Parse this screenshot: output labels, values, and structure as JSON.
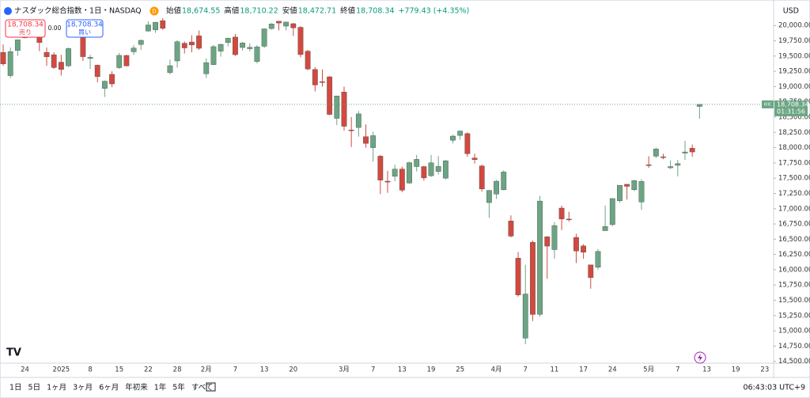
{
  "header": {
    "symbol": "ナスダック総合指数・1日・NASDAQ",
    "badge": "D",
    "ohlc": [
      {
        "label": "始値",
        "value": "18,674.55"
      },
      {
        "label": "高値",
        "value": "18,710.22"
      },
      {
        "label": "安値",
        "value": "18,472.71"
      },
      {
        "label": "終値",
        "value": "18,708.34"
      }
    ],
    "change": "+779.43 (+4.35%)"
  },
  "trade": {
    "sell": {
      "price": "18,708.34",
      "label": "売り"
    },
    "spread": "0.00",
    "buy": {
      "price": "18,708.34",
      "label": "買い"
    }
  },
  "currency": "USD",
  "price_tag": {
    "symbol": "IXIC",
    "price": "18,708.34",
    "countdown": "01:31:56"
  },
  "toolbar": {
    "ranges": [
      "1日",
      "5日",
      "1ヶ月",
      "3ヶ月",
      "6ヶ月",
      "年初来",
      "1年",
      "5年",
      "すべて"
    ],
    "clock": "06:43:03 UTC+9"
  },
  "chart_data": {
    "type": "candlestick",
    "up_color": "#6BA583",
    "down_color": "#D2493F",
    "grid": false,
    "ylim": [
      14470,
      20340
    ],
    "yticks": [
      {
        "value": 14500,
        "label": "14,500.00"
      },
      {
        "value": 14750,
        "label": "14,750.00"
      },
      {
        "value": 15000,
        "label": "15,000.00"
      },
      {
        "value": 15250,
        "label": "15,250.00"
      },
      {
        "value": 15500,
        "label": "15,500.00"
      },
      {
        "value": 15750,
        "label": "15,750.00"
      },
      {
        "value": 16000,
        "label": "16,000.00"
      },
      {
        "value": 16250,
        "label": "16,250.00"
      },
      {
        "value": 16500,
        "label": "16,500.00"
      },
      {
        "value": 16750,
        "label": "16,750.00"
      },
      {
        "value": 17000,
        "label": "17,000.00"
      },
      {
        "value": 17250,
        "label": "17,250.00"
      },
      {
        "value": 17500,
        "label": "17,500.00"
      },
      {
        "value": 17750,
        "label": "17,750.00"
      },
      {
        "value": 18000,
        "label": "18,000.00"
      },
      {
        "value": 18250,
        "label": "18,250.00"
      },
      {
        "value": 18500,
        "label": "18,500.00"
      },
      {
        "value": 18750,
        "label": "18,750.00"
      },
      {
        "value": 19000,
        "label": "19,000.00"
      },
      {
        "value": 19250,
        "label": "19,250.00"
      },
      {
        "value": 19500,
        "label": "19,500.00"
      },
      {
        "value": 19750,
        "label": "19,750.00"
      },
      {
        "value": 20000,
        "label": "20,000.00"
      }
    ],
    "categories": [
      null,
      null,
      null,
      "24",
      null,
      null,
      null,
      null,
      "2025",
      null,
      null,
      null,
      "8",
      null,
      null,
      null,
      "15",
      null,
      null,
      null,
      "22",
      null,
      null,
      null,
      "28",
      null,
      null,
      null,
      "2月",
      null,
      null,
      null,
      "7",
      null,
      null,
      null,
      "13",
      null,
      null,
      null,
      "20",
      null,
      null,
      null,
      null,
      null,
      null,
      "3月",
      null,
      null,
      null,
      "7",
      null,
      null,
      null,
      "13",
      null,
      null,
      null,
      "19",
      null,
      null,
      null,
      "25",
      null,
      null,
      null,
      null,
      "4月",
      null,
      null,
      null,
      "7",
      null,
      null,
      null,
      "11",
      null,
      null,
      null,
      "17",
      null,
      null,
      null,
      "24",
      null,
      null,
      null,
      null,
      "5月",
      null,
      null,
      null,
      "7",
      null,
      null,
      null,
      "13",
      null,
      null,
      null,
      "19",
      null,
      null,
      null,
      "23",
      null
    ],
    "open": [
      19560,
      19180,
      19590,
      19800,
      19970,
      19930,
      19560,
      19520,
      19400,
      19340,
      19850,
      19940,
      19460,
      19350,
      18970,
      19200,
      19310,
      19510,
      19570,
      19690,
      19910,
      19930,
      20080,
      19230,
      19420,
      19710,
      19730,
      19830,
      19210,
      19360,
      19580,
      19720,
      19810,
      19640,
      19620,
      19410,
      19660,
      19950,
      20070,
      19990,
      20030,
      19970,
      19580,
      19280,
      19080,
      19160,
      18480,
      18910,
      18290,
      18330,
      18180,
      18000,
      17860,
      17450,
      17530,
      17650,
      17420,
      17690,
      17690,
      17540,
      17610,
      17500,
      18120,
      18200,
      18230,
      17830,
      17700,
      17100,
      17240,
      17310,
      16800,
      16190,
      14880,
      16450,
      15270,
      16540,
      16330,
      17010,
      16830,
      16530,
      16390,
      16080,
      16040,
      16640,
      16740,
      17130,
      17400,
      17310,
      17110,
      17720,
      17860,
      17850,
      17670,
      17710,
      17910,
      17990,
      18674.55,
      null,
      null,
      null,
      null,
      null,
      null,
      null,
      null,
      null,
      null
    ],
    "high": [
      19690,
      19640,
      19770,
      20040,
      20060,
      19940,
      19640,
      19560,
      19520,
      19640,
      20010,
      19970,
      19520,
      19360,
      19100,
      19250,
      19550,
      19520,
      19680,
      19770,
      20070,
      20060,
      20120,
      19440,
      19760,
      19740,
      19840,
      19920,
      19460,
      19680,
      19700,
      19800,
      19860,
      19730,
      19710,
      19680,
      19950,
      20040,
      20070,
      20060,
      20040,
      19990,
      19600,
      19320,
      19280,
      19170,
      18850,
      19000,
      18500,
      18600,
      18380,
      18260,
      17880,
      17620,
      17720,
      17690,
      17770,
      17880,
      17700,
      17880,
      17860,
      17800,
      18210,
      18280,
      18250,
      17900,
      17720,
      17310,
      17470,
      17630,
      16890,
      16290,
      16080,
      16480,
      17210,
      16550,
      16780,
      17050,
      16950,
      16590,
      16420,
      16080,
      16340,
      17050,
      17170,
      17380,
      17400,
      17470,
      17480,
      17860,
      18000,
      17900,
      17790,
      17800,
      18110,
      18050,
      18710.22,
      null,
      null,
      null,
      null,
      null,
      null,
      null,
      null,
      null,
      null
    ],
    "low": [
      19340,
      19140,
      19500,
      19790,
      19900,
      19580,
      19340,
      19290,
      19180,
      19320,
      19800,
      19420,
      19290,
      19070,
      18830,
      18990,
      19290,
      19330,
      19520,
      19600,
      19900,
      19880,
      19930,
      19200,
      19310,
      19540,
      19560,
      19600,
      19140,
      19350,
      19490,
      19660,
      19500,
      19590,
      19580,
      19380,
      19630,
      19930,
      19920,
      19920,
      19830,
      19480,
      19270,
      18920,
      19000,
      18530,
      18370,
      18280,
      18010,
      18180,
      18000,
      17770,
      17240,
      17260,
      17450,
      17270,
      17410,
      17610,
      17460,
      17520,
      17560,
      17480,
      18070,
      18130,
      17850,
      17740,
      17280,
      16850,
      17160,
      17300,
      16530,
      15560,
      14780,
      15160,
      15230,
      15850,
      16180,
      16650,
      16790,
      16110,
      16180,
      15690,
      16000,
      16640,
      16710,
      17100,
      17150,
      17290,
      16980,
      17670,
      17830,
      17810,
      17650,
      17530,
      17800,
      17850,
      18472.71,
      null,
      null,
      null,
      null,
      null,
      null,
      null,
      null,
      null,
      null
    ],
    "close": [
      19372,
      19573,
      19765,
      20031,
      20020,
      19722,
      19487,
      19311,
      19281,
      19622,
      19865,
      19490,
      19479,
      19162,
      19088,
      19044,
      19511,
      19338,
      19630,
      19757,
      20009,
      20053,
      19955,
      19342,
      19734,
      19633,
      19681,
      19627,
      19392,
      19654,
      19692,
      19791,
      19523,
      19714,
      19643,
      19649,
      19945,
      20026,
      20041,
      20056,
      19962,
      19524,
      19287,
      19026,
      19075,
      18544,
      18847,
      18350,
      18285,
      18553,
      18069,
      18196,
      17468,
      17436,
      17648,
      17303,
      17754,
      17808,
      17504,
      17751,
      17692,
      17784,
      18189,
      18272,
      17900,
      17804,
      17323,
      17299,
      17450,
      17601,
      16551,
      15588,
      15603,
      15268,
      17125,
      16387,
      16724,
      16832,
      16823,
      16307,
      16287,
      15871,
      16300,
      16708,
      17166,
      17383,
      17366,
      17461,
      17446,
      17711,
      17978,
      17844,
      17690,
      17738,
      17929,
      17929,
      18708.34,
      null,
      null,
      null,
      null,
      null,
      null,
      null,
      null,
      null,
      null
    ]
  }
}
